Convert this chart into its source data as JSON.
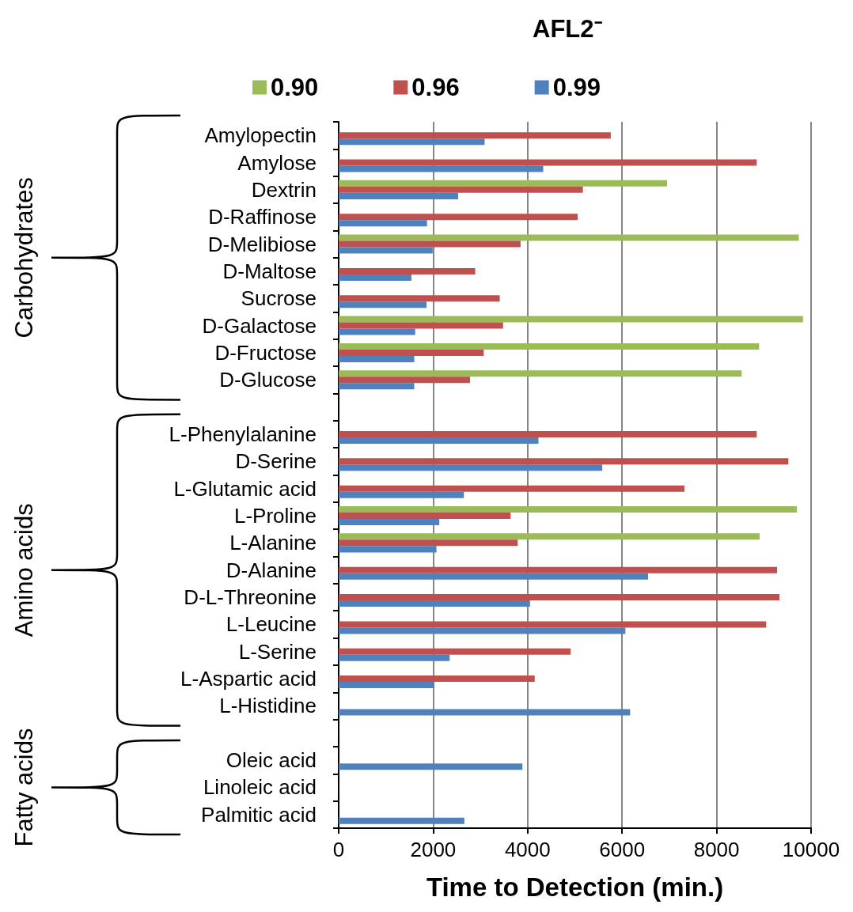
{
  "chart_data": {
    "type": "bar",
    "orientation": "horizontal",
    "title": "AFL2⁻",
    "xlabel": "Time to Detection (min.)",
    "categories": [
      "Amylopectin",
      "Amylose",
      "Dextrin",
      "D-Raffinose",
      "D-Melibiose",
      "D-Maltose",
      "Sucrose",
      "D-Galactose",
      "D-Fructose",
      "D-Glucose",
      null,
      "L-Phenylalanine",
      "D-Serine",
      "L-Glutamic acid",
      "L-Proline",
      "L-Alanine",
      "D-Alanine",
      "D-L-Threonine",
      "L-Leucine",
      "L-Serine",
      "L-Aspartic acid",
      "L-Histidine",
      null,
      "Oleic acid",
      "Linoleic acid",
      "Palmitic acid"
    ],
    "series": [
      {
        "name": "0.90",
        "color": "#9bbb59",
        "values": [
          null,
          null,
          6950,
          null,
          9740,
          null,
          null,
          9830,
          8900,
          8530,
          null,
          null,
          null,
          null,
          9700,
          8910,
          null,
          null,
          null,
          null,
          null,
          null,
          null,
          null,
          null,
          null
        ]
      },
      {
        "name": "0.96",
        "color": "#c0504d",
        "values": [
          5760,
          8850,
          5170,
          5060,
          3850,
          2890,
          3410,
          3480,
          3070,
          2780,
          null,
          8850,
          9520,
          7320,
          3640,
          3790,
          9280,
          9330,
          9050,
          4910,
          4150,
          null,
          null,
          null,
          null,
          null
        ]
      },
      {
        "name": "0.99",
        "color": "#4f81bd",
        "values": [
          3090,
          4330,
          2530,
          1870,
          1990,
          1540,
          1860,
          1620,
          1600,
          1600,
          null,
          4230,
          5580,
          2650,
          2130,
          2070,
          6550,
          4050,
          6070,
          2350,
          2020,
          6170,
          null,
          3890,
          null,
          2660
        ]
      }
    ],
    "xlim": [
      0,
      10000
    ],
    "xticks": [
      0,
      2000,
      4000,
      6000,
      8000,
      10000
    ],
    "grid": "x",
    "legend": "top",
    "annotations": [
      "Carbohydrates",
      "Amino acids",
      "Fatty acids"
    ]
  }
}
